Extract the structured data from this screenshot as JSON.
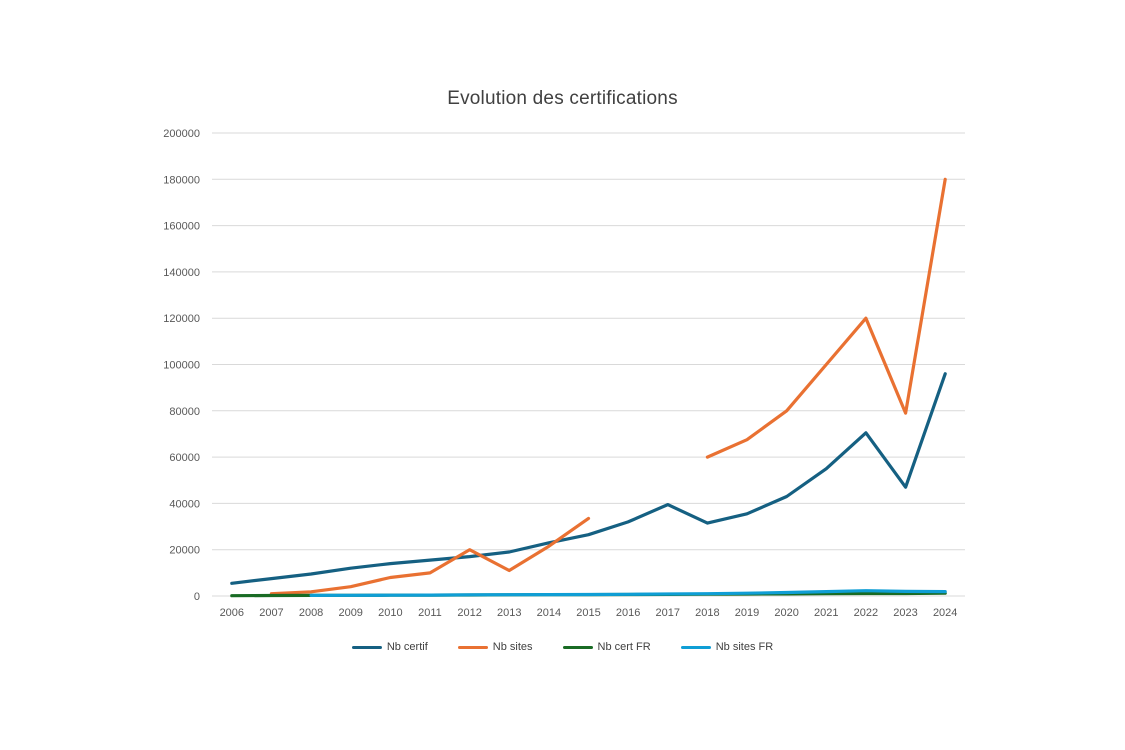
{
  "chart": {
    "title_color": "#404040",
    "axis_label_color": "#595959",
    "gridline_color": "#D9D9D9",
    "background_color": "#ffffff"
  },
  "chart_data": {
    "type": "line",
    "title": "Evolution des certifications",
    "xlabel": "",
    "ylabel": "",
    "x": [
      "2006",
      "2007",
      "2008",
      "2009",
      "2010",
      "2011",
      "2012",
      "2013",
      "2014",
      "2015",
      "2016",
      "2017",
      "2018",
      "2019",
      "2020",
      "2021",
      "2022",
      "2023",
      "2024"
    ],
    "series": [
      {
        "name": "Nb certif",
        "color": "#156082",
        "values": [
          5500,
          7500,
          9500,
          12000,
          14000,
          15500,
          17000,
          19000,
          23000,
          26500,
          32000,
          39500,
          31500,
          35500,
          43000,
          55000,
          70500,
          47000,
          96000
        ]
      },
      {
        "name": "Nb sites",
        "color": "#E97132",
        "values": [
          null,
          1000,
          1800,
          4000,
          8000,
          10000,
          20000,
          11000,
          21500,
          33500,
          null,
          null,
          60000,
          67500,
          80000,
          100000,
          120000,
          79000,
          180000
        ]
      },
      {
        "name": "Nb cert FR",
        "color": "#196B24",
        "values": [
          150,
          200,
          250,
          300,
          350,
          400,
          450,
          500,
          550,
          600,
          650,
          700,
          800,
          850,
          900,
          1000,
          1100,
          1100,
          1200
        ]
      },
      {
        "name": "Nb sites FR",
        "color": "#0F9ED5",
        "values": [
          null,
          null,
          250,
          300,
          350,
          400,
          500,
          550,
          600,
          650,
          750,
          850,
          1000,
          1200,
          1500,
          1900,
          2300,
          2000,
          1900
        ]
      }
    ],
    "ylim": [
      0,
      200000
    ],
    "ytick_step": 20000,
    "grid": true,
    "legend_position": "bottom"
  }
}
